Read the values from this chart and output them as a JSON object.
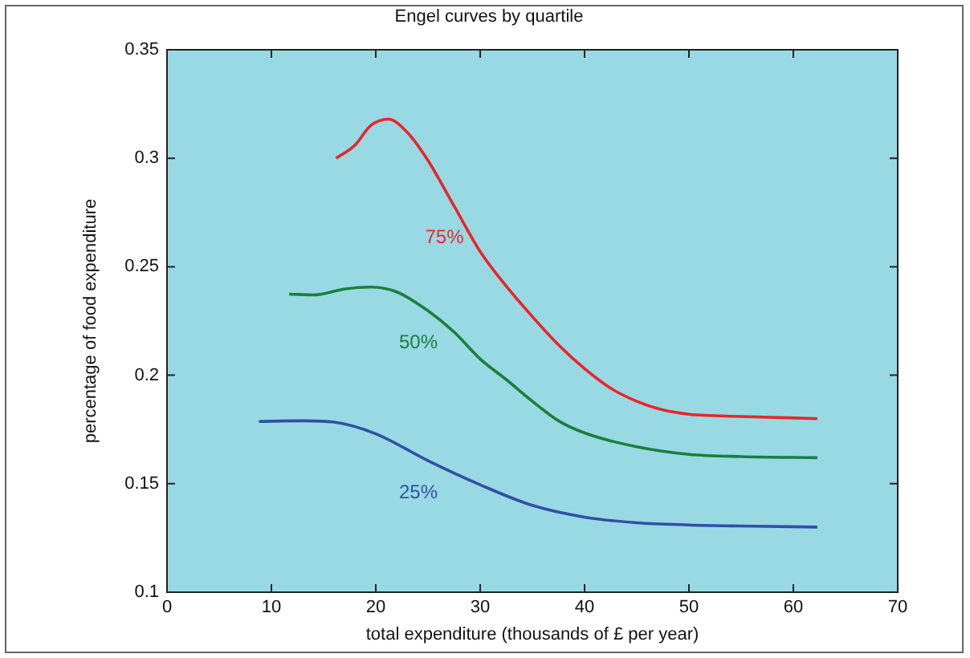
{
  "chart_data": {
    "type": "line",
    "title": "Engel curves by quartile",
    "xlabel": "total expenditure (thousands of £ per year)",
    "ylabel": "percentage of food expenditure",
    "xlim": [
      0,
      70
    ],
    "xticks": [
      0,
      10,
      20,
      30,
      40,
      50,
      60,
      70
    ],
    "ylim": [
      0.1,
      0.35
    ],
    "yticks": [
      0.1,
      0.15,
      0.2,
      0.25,
      0.3,
      0.35
    ],
    "grid": false,
    "legend": false,
    "marker": "none",
    "line_style": "solid",
    "series": [
      {
        "name": "25%",
        "color": "#3150a3",
        "x": [
          8.8,
          13,
          16,
          20,
          25,
          30,
          35,
          40,
          45,
          50,
          55,
          62.3
        ],
        "values": [
          0.1787,
          0.179,
          0.1784,
          0.173,
          0.1606,
          0.1495,
          0.14,
          0.1346,
          0.132,
          0.131,
          0.1305,
          0.13
        ]
      },
      {
        "name": "50%",
        "color": "#1a7f3a",
        "x": [
          11.7,
          14,
          17,
          19.5,
          22,
          25,
          27.5,
          30,
          32.5,
          35,
          37.5,
          40,
          45,
          50,
          55,
          62.3
        ],
        "values": [
          0.2374,
          0.237,
          0.2397,
          0.2406,
          0.2384,
          0.2297,
          0.2199,
          0.2075,
          0.198,
          0.188,
          0.179,
          0.1734,
          0.167,
          0.1635,
          0.1625,
          0.162
        ]
      },
      {
        "name": "75%",
        "color": "#e8262a",
        "x": [
          16.2,
          18,
          19.5,
          21.2,
          23,
          25,
          27.5,
          30,
          32.5,
          35,
          37.5,
          40,
          42.5,
          45,
          47.5,
          50,
          55,
          62.3
        ],
        "values": [
          0.3,
          0.306,
          0.315,
          0.318,
          0.312,
          0.299,
          0.278,
          0.257,
          0.241,
          0.227,
          0.214,
          0.203,
          0.194,
          0.188,
          0.184,
          0.182,
          0.181,
          0.18
        ]
      }
    ]
  }
}
